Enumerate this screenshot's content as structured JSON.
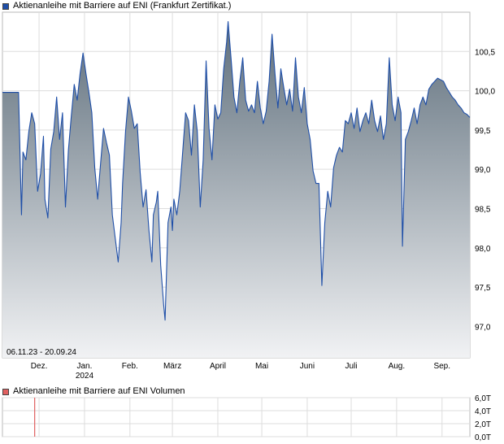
{
  "chart_data": [
    {
      "type": "area",
      "legend": "Aktienanleihe mit Barriere auf ENI  (Frankfurt Zertifikat.)",
      "date_range_label": "06.11.23 - 20.09.24",
      "y_ticks": [
        "100,5",
        "100,0",
        "99,5",
        "99,0",
        "98,5",
        "98,0",
        "97,5",
        "97,0"
      ],
      "y_tick_values": [
        100.5,
        100.0,
        99.5,
        99.0,
        98.5,
        98.0,
        97.5,
        97.0
      ],
      "ylim": [
        96.6,
        101.0
      ],
      "x_ticks": [
        {
          "label": "Dez.",
          "sub": "",
          "date": "2023-12-01"
        },
        {
          "label": "Jan.",
          "sub": "2024",
          "date": "2024-01-01"
        },
        {
          "label": "Feb.",
          "sub": "",
          "date": "2024-02-01"
        },
        {
          "label": "März",
          "sub": "",
          "date": "2024-03-01"
        },
        {
          "label": "April",
          "sub": "",
          "date": "2024-04-01"
        },
        {
          "label": "Mai",
          "sub": "",
          "date": "2024-05-01"
        },
        {
          "label": "Juni",
          "sub": "",
          "date": "2024-06-01"
        },
        {
          "label": "Juli",
          "sub": "",
          "date": "2024-07-01"
        },
        {
          "label": "Aug.",
          "sub": "",
          "date": "2024-08-01"
        },
        {
          "label": "Sep.",
          "sub": "",
          "date": "2024-09-01"
        }
      ],
      "xlim": [
        "2023-11-06",
        "2024-09-20"
      ],
      "series": [
        {
          "line_color": "#1f4fa8",
          "fill_top": "#5f6f7c",
          "fill_bottom": "#f1f2f4",
          "points": [
            [
              "2023-11-06",
              99.98
            ],
            [
              "2023-11-17",
              99.98
            ],
            [
              "2023-11-19",
              98.42
            ],
            [
              "2023-11-20",
              99.22
            ],
            [
              "2023-11-22",
              99.12
            ],
            [
              "2023-11-24",
              99.48
            ],
            [
              "2023-11-26",
              99.72
            ],
            [
              "2023-11-28",
              99.58
            ],
            [
              "2023-11-30",
              98.72
            ],
            [
              "2023-12-02",
              98.94
            ],
            [
              "2023-12-04",
              99.42
            ],
            [
              "2023-12-05",
              98.62
            ],
            [
              "2023-12-07",
              98.38
            ],
            [
              "2023-12-09",
              99.26
            ],
            [
              "2023-12-11",
              99.48
            ],
            [
              "2023-12-13",
              99.92
            ],
            [
              "2023-12-15",
              99.38
            ],
            [
              "2023-12-17",
              99.72
            ],
            [
              "2023-12-19",
              98.52
            ],
            [
              "2023-12-21",
              99.24
            ],
            [
              "2023-12-23",
              99.68
            ],
            [
              "2023-12-25",
              100.08
            ],
            [
              "2023-12-27",
              99.88
            ],
            [
              "2023-12-29",
              100.22
            ],
            [
              "2023-12-31",
              100.48
            ],
            [
              "2024-01-02",
              100.22
            ],
            [
              "2024-01-04",
              99.98
            ],
            [
              "2024-01-06",
              99.72
            ],
            [
              "2024-01-08",
              99.02
            ],
            [
              "2024-01-10",
              98.62
            ],
            [
              "2024-01-12",
              99.08
            ],
            [
              "2024-01-14",
              99.52
            ],
            [
              "2024-01-16",
              99.34
            ],
            [
              "2024-01-18",
              99.18
            ],
            [
              "2024-01-20",
              98.42
            ],
            [
              "2024-01-22",
              98.12
            ],
            [
              "2024-01-24",
              97.82
            ],
            [
              "2024-01-26",
              98.32
            ],
            [
              "2024-01-27",
              98.82
            ],
            [
              "2024-01-29",
              99.48
            ],
            [
              "2024-01-31",
              99.92
            ],
            [
              "2024-02-02",
              99.74
            ],
            [
              "2024-02-04",
              99.52
            ],
            [
              "2024-02-06",
              99.58
            ],
            [
              "2024-02-08",
              98.96
            ],
            [
              "2024-02-10",
              98.52
            ],
            [
              "2024-02-12",
              98.74
            ],
            [
              "2024-02-14",
              98.22
            ],
            [
              "2024-02-16",
              97.82
            ],
            [
              "2024-02-17",
              98.42
            ],
            [
              "2024-02-19",
              98.58
            ],
            [
              "2024-02-20",
              98.72
            ],
            [
              "2024-02-22",
              97.78
            ],
            [
              "2024-02-24",
              97.28
            ],
            [
              "2024-02-25",
              97.08
            ],
            [
              "2024-02-27",
              98.32
            ],
            [
              "2024-02-29",
              98.52
            ],
            [
              "2024-03-01",
              98.22
            ],
            [
              "2024-03-02",
              98.62
            ],
            [
              "2024-03-04",
              98.42
            ],
            [
              "2024-03-06",
              98.72
            ],
            [
              "2024-03-08",
              99.22
            ],
            [
              "2024-03-10",
              99.72
            ],
            [
              "2024-03-12",
              99.62
            ],
            [
              "2024-03-14",
              99.18
            ],
            [
              "2024-03-16",
              99.82
            ],
            [
              "2024-03-18",
              99.48
            ],
            [
              "2024-03-20",
              98.52
            ],
            [
              "2024-03-22",
              99.12
            ],
            [
              "2024-03-24",
              100.38
            ],
            [
              "2024-03-26",
              99.52
            ],
            [
              "2024-03-28",
              99.12
            ],
            [
              "2024-03-30",
              99.82
            ],
            [
              "2024-04-01",
              99.64
            ],
            [
              "2024-04-03",
              99.72
            ],
            [
              "2024-04-05",
              100.28
            ],
            [
              "2024-04-07",
              100.62
            ],
            [
              "2024-04-08",
              100.88
            ],
            [
              "2024-04-10",
              100.42
            ],
            [
              "2024-04-12",
              99.92
            ],
            [
              "2024-04-14",
              99.72
            ],
            [
              "2024-04-16",
              100.12
            ],
            [
              "2024-04-18",
              100.42
            ],
            [
              "2024-04-20",
              99.88
            ],
            [
              "2024-04-22",
              99.74
            ],
            [
              "2024-04-24",
              99.82
            ],
            [
              "2024-04-26",
              99.72
            ],
            [
              "2024-04-28",
              100.12
            ],
            [
              "2024-04-30",
              99.78
            ],
            [
              "2024-05-02",
              99.58
            ],
            [
              "2024-05-04",
              99.74
            ],
            [
              "2024-05-06",
              100.12
            ],
            [
              "2024-05-08",
              100.72
            ],
            [
              "2024-05-10",
              100.22
            ],
            [
              "2024-05-12",
              99.78
            ],
            [
              "2024-05-14",
              100.28
            ],
            [
              "2024-05-16",
              100.04
            ],
            [
              "2024-05-18",
              99.82
            ],
            [
              "2024-05-20",
              100.02
            ],
            [
              "2024-05-22",
              99.74
            ],
            [
              "2024-05-24",
              100.42
            ],
            [
              "2024-05-26",
              99.92
            ],
            [
              "2024-05-28",
              99.72
            ],
            [
              "2024-05-30",
              100.04
            ],
            [
              "2024-06-01",
              99.58
            ],
            [
              "2024-06-03",
              99.38
            ],
            [
              "2024-06-05",
              98.98
            ],
            [
              "2024-06-07",
              98.82
            ],
            [
              "2024-06-09",
              98.82
            ],
            [
              "2024-06-11",
              97.52
            ],
            [
              "2024-06-13",
              98.32
            ],
            [
              "2024-06-15",
              98.72
            ],
            [
              "2024-06-17",
              98.52
            ],
            [
              "2024-06-19",
              99.02
            ],
            [
              "2024-06-21",
              99.18
            ],
            [
              "2024-06-23",
              99.28
            ],
            [
              "2024-06-25",
              99.22
            ],
            [
              "2024-06-27",
              99.62
            ],
            [
              "2024-06-29",
              99.58
            ],
            [
              "2024-07-01",
              99.72
            ],
            [
              "2024-07-03",
              99.52
            ],
            [
              "2024-07-05",
              99.78
            ],
            [
              "2024-07-07",
              99.48
            ],
            [
              "2024-07-09",
              99.62
            ],
            [
              "2024-07-11",
              99.72
            ],
            [
              "2024-07-13",
              99.58
            ],
            [
              "2024-07-15",
              99.88
            ],
            [
              "2024-07-17",
              99.62
            ],
            [
              "2024-07-19",
              99.48
            ],
            [
              "2024-07-21",
              99.68
            ],
            [
              "2024-07-23",
              99.38
            ],
            [
              "2024-07-25",
              99.58
            ],
            [
              "2024-07-27",
              100.42
            ],
            [
              "2024-07-29",
              99.82
            ],
            [
              "2024-07-31",
              99.62
            ],
            [
              "2024-08-02",
              99.92
            ],
            [
              "2024-08-04",
              99.72
            ],
            [
              "2024-08-05",
              98.02
            ],
            [
              "2024-08-07",
              99.38
            ],
            [
              "2024-08-09",
              99.48
            ],
            [
              "2024-08-11",
              99.62
            ],
            [
              "2024-08-13",
              99.78
            ],
            [
              "2024-08-15",
              99.58
            ],
            [
              "2024-08-17",
              99.82
            ],
            [
              "2024-08-19",
              99.92
            ],
            [
              "2024-08-21",
              99.82
            ],
            [
              "2024-08-23",
              100.02
            ],
            [
              "2024-08-25",
              100.08
            ],
            [
              "2024-08-27",
              100.12
            ],
            [
              "2024-08-29",
              100.16
            ],
            [
              "2024-08-31",
              100.14
            ],
            [
              "2024-09-02",
              100.12
            ],
            [
              "2024-09-04",
              100.04
            ],
            [
              "2024-09-06",
              99.98
            ],
            [
              "2024-09-08",
              99.92
            ],
            [
              "2024-09-10",
              99.88
            ],
            [
              "2024-09-12",
              99.82
            ],
            [
              "2024-09-14",
              99.78
            ],
            [
              "2024-09-16",
              99.72
            ],
            [
              "2024-09-18",
              99.7
            ],
            [
              "2024-09-20",
              99.66
            ]
          ]
        }
      ]
    },
    {
      "type": "bar",
      "legend": "Aktienanleihe mit Barriere auf ENI  Volumen",
      "y_ticks": [
        "6,0T",
        "4,0T",
        "2,0T",
        "0,0T"
      ],
      "y_tick_values": [
        6.0,
        4.0,
        2.0,
        0.0
      ],
      "ylim": [
        0.0,
        6.0
      ],
      "bar_color": "#e06060",
      "bars": [
        {
          "date": "2023-11-28",
          "value": 6.0
        }
      ]
    }
  ]
}
